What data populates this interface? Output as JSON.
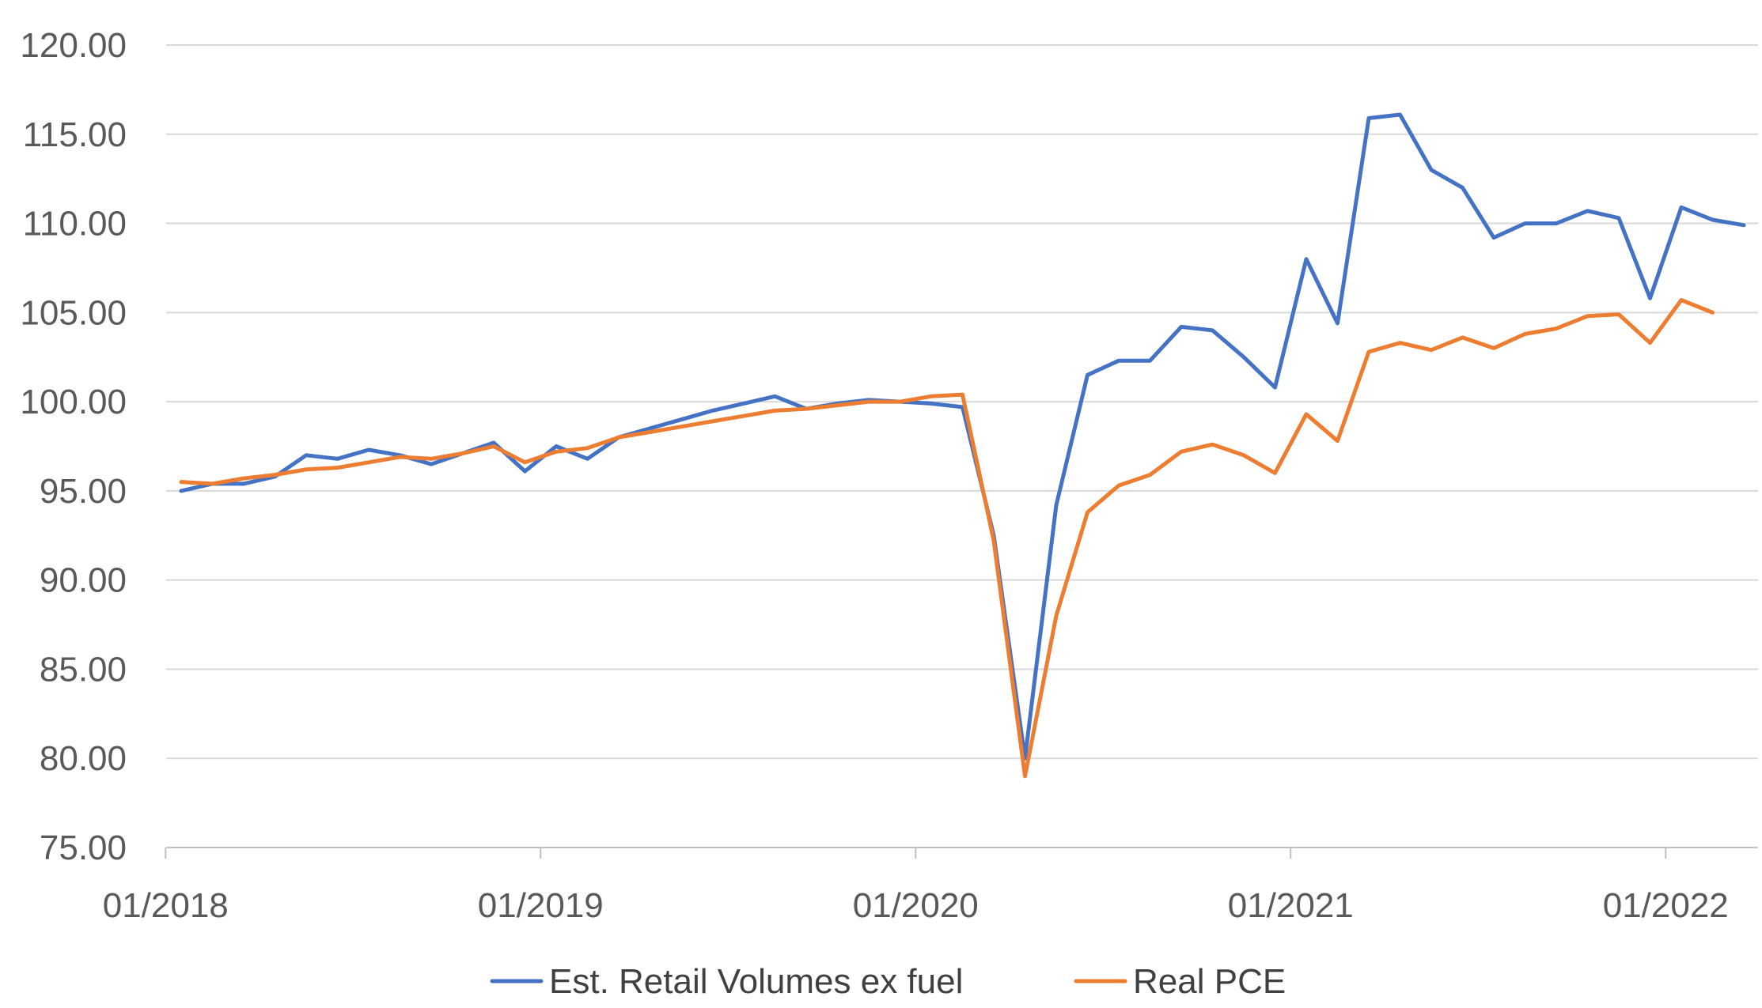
{
  "chart_data": {
    "type": "line",
    "title": "",
    "xlabel": "",
    "ylabel": "",
    "ylim": [
      75,
      120
    ],
    "yticks": [
      "75.00",
      "80.00",
      "85.00",
      "90.00",
      "95.00",
      "100.00",
      "105.00",
      "110.00",
      "115.00",
      "120.00"
    ],
    "xticks": [
      {
        "label": "01/2018",
        "date": "2018-01"
      },
      {
        "label": "01/2019",
        "date": "2019-01"
      },
      {
        "label": "01/2020",
        "date": "2020-01"
      },
      {
        "label": "01/2021",
        "date": "2021-01"
      },
      {
        "label": "01/2022",
        "date": "2022-01"
      }
    ],
    "x_range": [
      "2018-01",
      "2022-03"
    ],
    "grid": "horizontal",
    "legend_position": "bottom",
    "series": [
      {
        "name": "Est. Retail Volumes ex fuel",
        "color": "#4472c4",
        "points": [
          [
            "2018-01",
            95.0
          ],
          [
            "2018-02",
            95.4
          ],
          [
            "2018-03",
            95.4
          ],
          [
            "2018-04",
            95.8
          ],
          [
            "2018-05",
            97.0
          ],
          [
            "2018-06",
            96.8
          ],
          [
            "2018-07",
            97.3
          ],
          [
            "2018-08",
            97.0
          ],
          [
            "2018-09",
            96.5
          ],
          [
            "2018-10",
            97.1
          ],
          [
            "2018-11",
            97.7
          ],
          [
            "2018-12",
            96.1
          ],
          [
            "2019-01",
            97.5
          ],
          [
            "2019-02",
            96.8
          ],
          [
            "2019-03",
            98.0
          ],
          [
            "2019-04",
            98.5
          ],
          [
            "2019-05",
            99.0
          ],
          [
            "2019-06",
            99.5
          ],
          [
            "2019-07",
            99.9
          ],
          [
            "2019-08",
            100.3
          ],
          [
            "2019-09",
            99.6
          ],
          [
            "2019-10",
            99.9
          ],
          [
            "2019-11",
            100.1
          ],
          [
            "2019-12",
            100.0
          ],
          [
            "2020-01",
            99.9
          ],
          [
            "2020-02",
            99.7
          ],
          [
            "2020-03",
            92.5
          ],
          [
            "2020-04",
            80.0
          ],
          [
            "2020-05",
            94.2
          ],
          [
            "2020-06",
            101.5
          ],
          [
            "2020-07",
            102.3
          ],
          [
            "2020-08",
            102.3
          ],
          [
            "2020-09",
            104.2
          ],
          [
            "2020-10",
            104.0
          ],
          [
            "2020-11",
            102.5
          ],
          [
            "2020-12",
            100.8
          ],
          [
            "2021-01",
            108.0
          ],
          [
            "2021-02",
            104.4
          ],
          [
            "2021-03",
            115.9
          ],
          [
            "2021-04",
            116.1
          ],
          [
            "2021-05",
            113.0
          ],
          [
            "2021-06",
            112.0
          ],
          [
            "2021-07",
            109.2
          ],
          [
            "2021-08",
            110.0
          ],
          [
            "2021-09",
            110.0
          ],
          [
            "2021-10",
            110.7
          ],
          [
            "2021-11",
            110.3
          ],
          [
            "2021-12",
            105.8
          ],
          [
            "2022-01",
            110.9
          ],
          [
            "2022-02",
            110.2
          ],
          [
            "2022-03",
            109.9
          ]
        ]
      },
      {
        "name": "Real PCE",
        "color": "#ed7d31",
        "points": [
          [
            "2018-01",
            95.5
          ],
          [
            "2018-02",
            95.4
          ],
          [
            "2018-03",
            95.7
          ],
          [
            "2018-04",
            95.9
          ],
          [
            "2018-05",
            96.2
          ],
          [
            "2018-06",
            96.3
          ],
          [
            "2018-07",
            96.6
          ],
          [
            "2018-08",
            96.9
          ],
          [
            "2018-09",
            96.8
          ],
          [
            "2018-10",
            97.1
          ],
          [
            "2018-11",
            97.5
          ],
          [
            "2018-12",
            96.6
          ],
          [
            "2019-01",
            97.2
          ],
          [
            "2019-02",
            97.4
          ],
          [
            "2019-03",
            98.0
          ],
          [
            "2019-04",
            98.3
          ],
          [
            "2019-05",
            98.6
          ],
          [
            "2019-06",
            98.9
          ],
          [
            "2019-07",
            99.2
          ],
          [
            "2019-08",
            99.5
          ],
          [
            "2019-09",
            99.6
          ],
          [
            "2019-10",
            99.8
          ],
          [
            "2019-11",
            100.0
          ],
          [
            "2019-12",
            100.0
          ],
          [
            "2020-01",
            100.3
          ],
          [
            "2020-02",
            100.4
          ],
          [
            "2020-03",
            92.2
          ],
          [
            "2020-04",
            79.0
          ],
          [
            "2020-05",
            88.0
          ],
          [
            "2020-06",
            93.8
          ],
          [
            "2020-07",
            95.3
          ],
          [
            "2020-08",
            95.9
          ],
          [
            "2020-09",
            97.2
          ],
          [
            "2020-10",
            97.6
          ],
          [
            "2020-11",
            97.0
          ],
          [
            "2020-12",
            96.0
          ],
          [
            "2021-01",
            99.3
          ],
          [
            "2021-02",
            97.8
          ],
          [
            "2021-03",
            102.8
          ],
          [
            "2021-04",
            103.3
          ],
          [
            "2021-05",
            102.9
          ],
          [
            "2021-06",
            103.6
          ],
          [
            "2021-07",
            103.0
          ],
          [
            "2021-08",
            103.8
          ],
          [
            "2021-09",
            104.1
          ],
          [
            "2021-10",
            104.8
          ],
          [
            "2021-11",
            104.9
          ],
          [
            "2021-12",
            103.3
          ],
          [
            "2022-01",
            105.7
          ],
          [
            "2022-02",
            105.0
          ]
        ]
      }
    ]
  }
}
